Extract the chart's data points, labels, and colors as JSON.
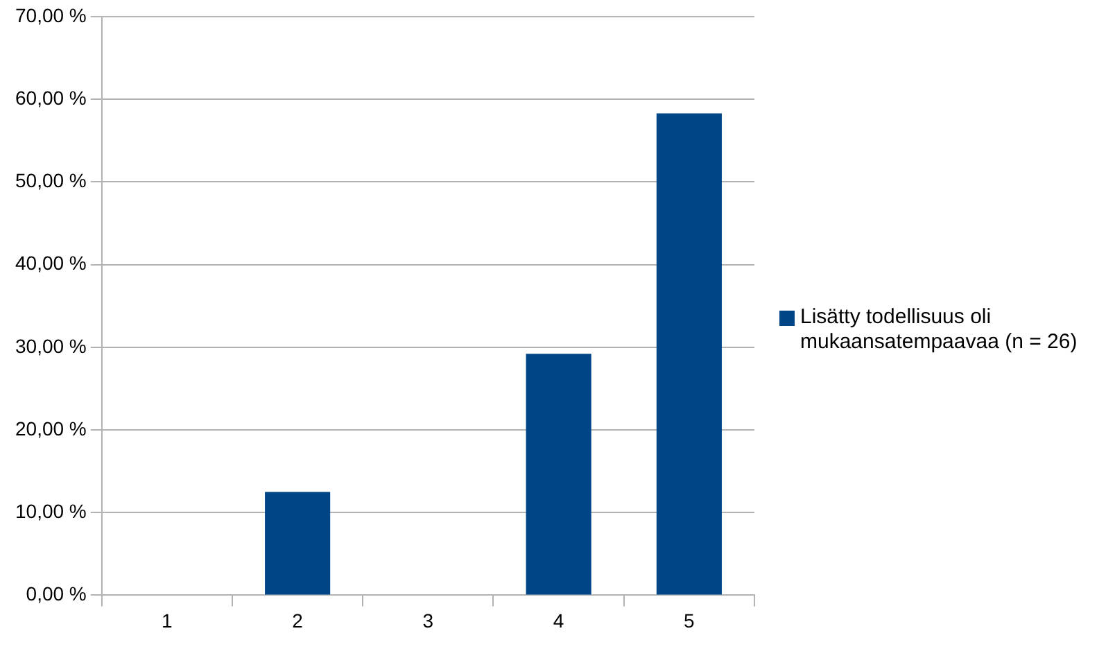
{
  "chart_data": {
    "type": "bar",
    "categories": [
      "1",
      "2",
      "3",
      "4",
      "5"
    ],
    "series": [
      {
        "name": "Lisätty todellisuus oli mukaansatempaavaa (n = 26)",
        "color": "#004586",
        "values": [
          0,
          12.5,
          0,
          29.2,
          58.3
        ]
      }
    ],
    "ylim": [
      0,
      70
    ],
    "yticks": [
      {
        "value": 0,
        "label": "0,00 %"
      },
      {
        "value": 10,
        "label": "10,00 %"
      },
      {
        "value": 20,
        "label": "20,00 %"
      },
      {
        "value": 30,
        "label": "30,00 %"
      },
      {
        "value": 40,
        "label": "40,00 %"
      },
      {
        "value": 50,
        "label": "50,00 %"
      },
      {
        "value": 60,
        "label": "60,00 %"
      },
      {
        "value": 70,
        "label": "70,00 %"
      }
    ],
    "grid": "y",
    "legend": "right"
  }
}
